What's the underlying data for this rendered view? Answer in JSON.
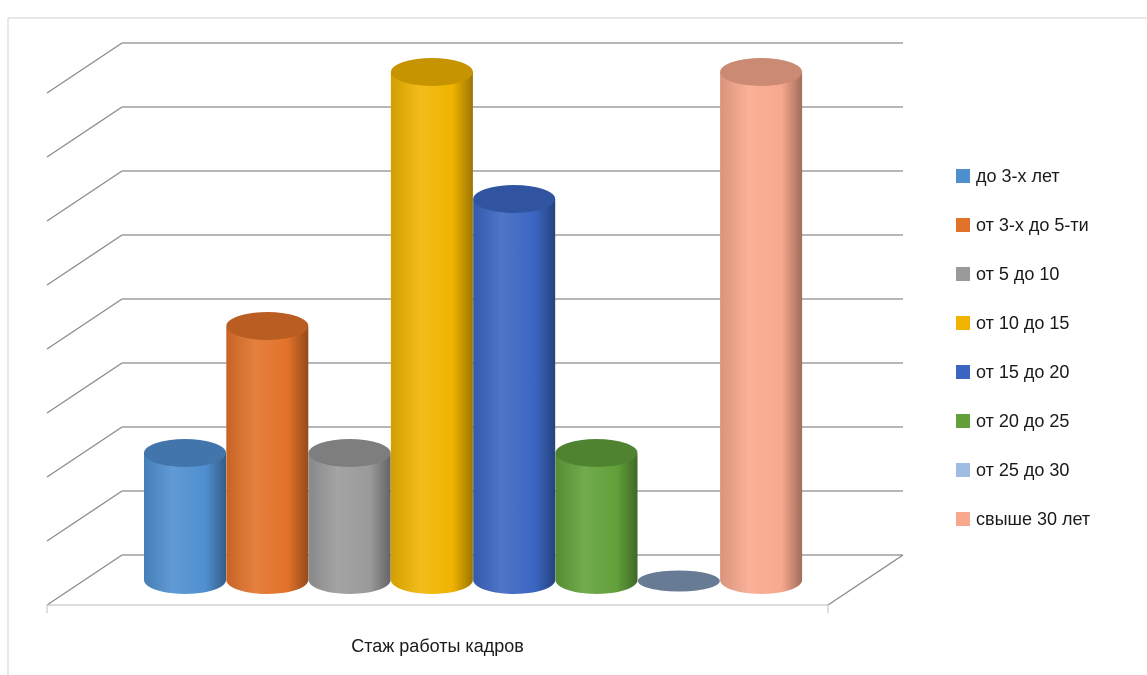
{
  "chart_data": {
    "type": "bar",
    "variant": "3d-cylinder",
    "categories": [
      "Стаж работы кадров"
    ],
    "series": [
      {
        "name": "до 3-х лет",
        "values": [
          2
        ],
        "color": "#4f8fd0"
      },
      {
        "name": "от 3-х до 5-ти",
        "values": [
          4
        ],
        "color": "#e2722a"
      },
      {
        "name": "от 5 до 10",
        "values": [
          2
        ],
        "color": "#9a9a9a"
      },
      {
        "name": "от 10 до 15",
        "values": [
          8
        ],
        "color": "#f0b400"
      },
      {
        "name": "от 15 до 20",
        "values": [
          6
        ],
        "color": "#3a66c2"
      },
      {
        "name": "от 20 до 25",
        "values": [
          2
        ],
        "color": "#62a03a"
      },
      {
        "name": "от 25 до 30",
        "values": [
          0
        ],
        "color": "#9fbde3"
      },
      {
        "name": "свыше 30 лет",
        "values": [
          8
        ],
        "color": "#f8a88c"
      }
    ],
    "ylim": [
      0,
      8
    ],
    "grid": true,
    "legend_position": "right"
  }
}
